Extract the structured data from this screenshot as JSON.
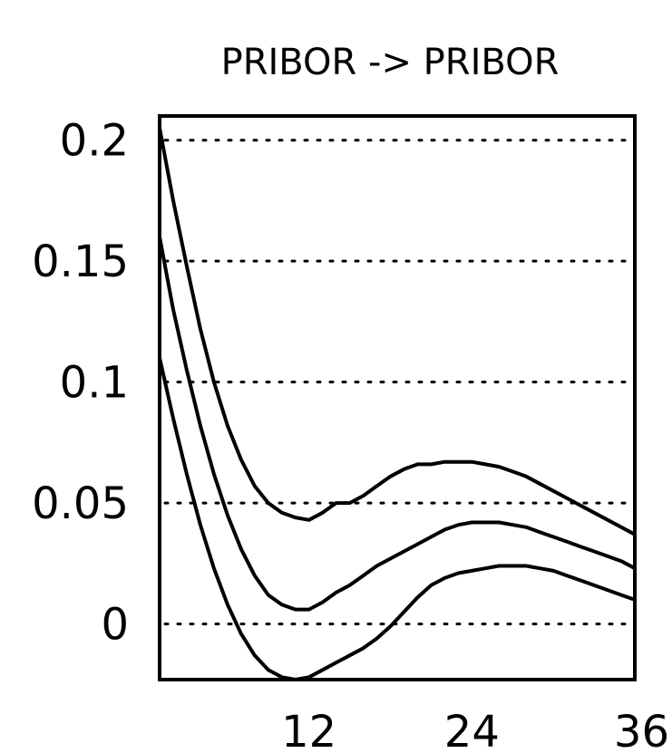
{
  "chart_data": {
    "type": "line",
    "title": "PRIBOR -> PRIBOR",
    "xlabel": "",
    "ylabel": "",
    "xlim": [
      1,
      36
    ],
    "ylim": [
      -0.023,
      0.21
    ],
    "x_ticks": [
      12,
      24,
      36
    ],
    "x_tick_labels": [
      "12",
      "24",
      "36"
    ],
    "y_ticks": [
      0,
      0.05,
      0.1,
      0.15,
      0.2
    ],
    "y_tick_labels": [
      "0",
      "0.05",
      "0.1",
      "0.15",
      "0.2"
    ],
    "grid": "horizontal dotted",
    "x": [
      1,
      2,
      3,
      4,
      5,
      6,
      7,
      8,
      9,
      10,
      11,
      12,
      13,
      14,
      15,
      16,
      17,
      18,
      19,
      20,
      21,
      22,
      23,
      24,
      25,
      26,
      27,
      28,
      29,
      30,
      31,
      32,
      33,
      34,
      35,
      36
    ],
    "series": [
      {
        "name": "",
        "values": [
          0.205,
          0.175,
          0.148,
          0.122,
          0.1,
          0.082,
          0.068,
          0.057,
          0.05,
          0.046,
          0.044,
          0.043,
          0.046,
          0.05,
          0.05,
          0.053,
          0.057,
          0.061,
          0.064,
          0.066,
          0.066,
          0.067,
          0.067,
          0.067,
          0.066,
          0.065,
          0.063,
          0.061,
          0.058,
          0.055,
          0.052,
          0.049,
          0.046,
          0.043,
          0.04,
          0.037
        ]
      },
      {
        "name": "",
        "values": [
          0.16,
          0.13,
          0.105,
          0.082,
          0.062,
          0.045,
          0.031,
          0.02,
          0.012,
          0.008,
          0.006,
          0.006,
          0.009,
          0.013,
          0.016,
          0.02,
          0.024,
          0.027,
          0.03,
          0.033,
          0.036,
          0.039,
          0.041,
          0.042,
          0.042,
          0.042,
          0.041,
          0.04,
          0.038,
          0.036,
          0.034,
          0.032,
          0.03,
          0.028,
          0.026,
          0.023
        ]
      },
      {
        "name": "",
        "values": [
          0.11,
          0.085,
          0.062,
          0.041,
          0.023,
          0.008,
          -0.004,
          -0.013,
          -0.019,
          -0.022,
          -0.023,
          -0.022,
          -0.019,
          -0.016,
          -0.013,
          -0.01,
          -0.006,
          -0.001,
          0.005,
          0.011,
          0.016,
          0.019,
          0.021,
          0.022,
          0.023,
          0.024,
          0.024,
          0.024,
          0.023,
          0.022,
          0.02,
          0.018,
          0.016,
          0.014,
          0.012,
          0.01
        ]
      }
    ]
  }
}
